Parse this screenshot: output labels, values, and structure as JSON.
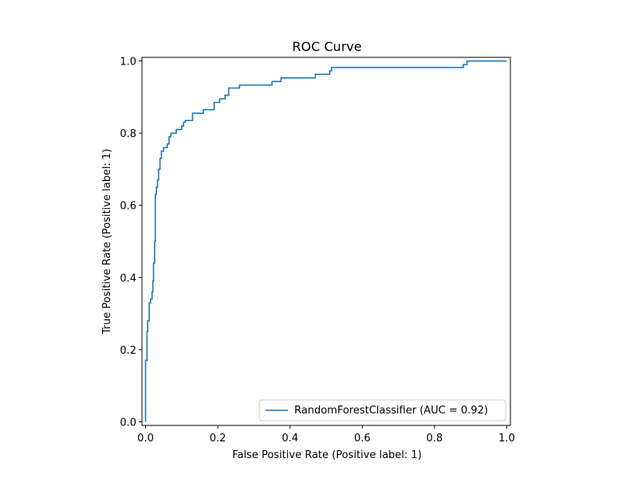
{
  "chart_data": {
    "type": "line",
    "title": "ROC Curve",
    "xlabel": "False Positive Rate (Positive label: 1)",
    "ylabel": "True Positive Rate (Positive label: 1)",
    "xlim": [
      -0.01,
      1.01
    ],
    "ylim": [
      -0.01,
      1.01
    ],
    "xticks": [
      "0.0",
      "0.2",
      "0.4",
      "0.6",
      "0.8",
      "1.0"
    ],
    "yticks": [
      "0.0",
      "0.2",
      "0.4",
      "0.6",
      "0.8",
      "1.0"
    ],
    "grid": false,
    "legend_position": "lower-right",
    "series": [
      {
        "name": "RandomForestClassifier (AUC = 0.92)",
        "color": "#1f77b4",
        "points": [
          [
            0.0,
            0.0
          ],
          [
            0.0,
            0.17
          ],
          [
            0.004,
            0.17
          ],
          [
            0.004,
            0.25
          ],
          [
            0.006,
            0.25
          ],
          [
            0.006,
            0.28
          ],
          [
            0.01,
            0.28
          ],
          [
            0.01,
            0.33
          ],
          [
            0.014,
            0.33
          ],
          [
            0.014,
            0.34
          ],
          [
            0.018,
            0.34
          ],
          [
            0.018,
            0.36
          ],
          [
            0.02,
            0.36
          ],
          [
            0.02,
            0.39
          ],
          [
            0.022,
            0.39
          ],
          [
            0.022,
            0.44
          ],
          [
            0.025,
            0.44
          ],
          [
            0.025,
            0.5
          ],
          [
            0.027,
            0.5
          ],
          [
            0.027,
            0.63
          ],
          [
            0.03,
            0.63
          ],
          [
            0.03,
            0.65
          ],
          [
            0.033,
            0.65
          ],
          [
            0.033,
            0.67
          ],
          [
            0.036,
            0.67
          ],
          [
            0.036,
            0.7
          ],
          [
            0.04,
            0.7
          ],
          [
            0.04,
            0.73
          ],
          [
            0.044,
            0.73
          ],
          [
            0.044,
            0.75
          ],
          [
            0.05,
            0.75
          ],
          [
            0.05,
            0.76
          ],
          [
            0.06,
            0.76
          ],
          [
            0.06,
            0.77
          ],
          [
            0.065,
            0.77
          ],
          [
            0.065,
            0.79
          ],
          [
            0.07,
            0.79
          ],
          [
            0.07,
            0.8
          ],
          [
            0.085,
            0.8
          ],
          [
            0.085,
            0.81
          ],
          [
            0.1,
            0.81
          ],
          [
            0.1,
            0.82
          ],
          [
            0.105,
            0.82
          ],
          [
            0.105,
            0.83
          ],
          [
            0.11,
            0.83
          ],
          [
            0.11,
            0.835
          ],
          [
            0.13,
            0.835
          ],
          [
            0.13,
            0.855
          ],
          [
            0.16,
            0.855
          ],
          [
            0.16,
            0.865
          ],
          [
            0.19,
            0.865
          ],
          [
            0.19,
            0.885
          ],
          [
            0.205,
            0.885
          ],
          [
            0.205,
            0.895
          ],
          [
            0.22,
            0.895
          ],
          [
            0.22,
            0.905
          ],
          [
            0.23,
            0.905
          ],
          [
            0.23,
            0.925
          ],
          [
            0.26,
            0.925
          ],
          [
            0.26,
            0.933
          ],
          [
            0.35,
            0.933
          ],
          [
            0.35,
            0.943
          ],
          [
            0.375,
            0.943
          ],
          [
            0.375,
            0.953
          ],
          [
            0.47,
            0.953
          ],
          [
            0.47,
            0.963
          ],
          [
            0.51,
            0.963
          ],
          [
            0.51,
            0.973
          ],
          [
            0.515,
            0.973
          ],
          [
            0.515,
            0.982
          ],
          [
            0.88,
            0.982
          ],
          [
            0.88,
            0.99
          ],
          [
            0.89,
            0.99
          ],
          [
            0.89,
            1.0
          ],
          [
            1.0,
            1.0
          ]
        ]
      }
    ]
  }
}
